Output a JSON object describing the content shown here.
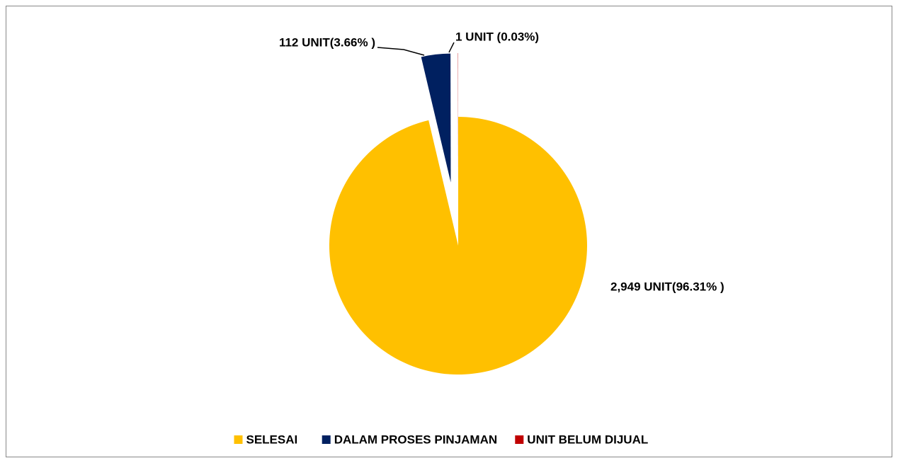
{
  "chart_data": {
    "type": "pie",
    "categories": [
      "SELESAI",
      "DALAM PROSES PINJAMAN",
      "UNIT BELUM DIJUAL"
    ],
    "values": [
      2949,
      112,
      1
    ],
    "value_labels": [
      "2,949 UNIT(96.31% )",
      "112 UNIT(3.66% )",
      "1 UNIT (0.03%)"
    ],
    "colors": [
      "#FFC000",
      "#002060",
      "#C00000"
    ],
    "legend": "bottom"
  }
}
